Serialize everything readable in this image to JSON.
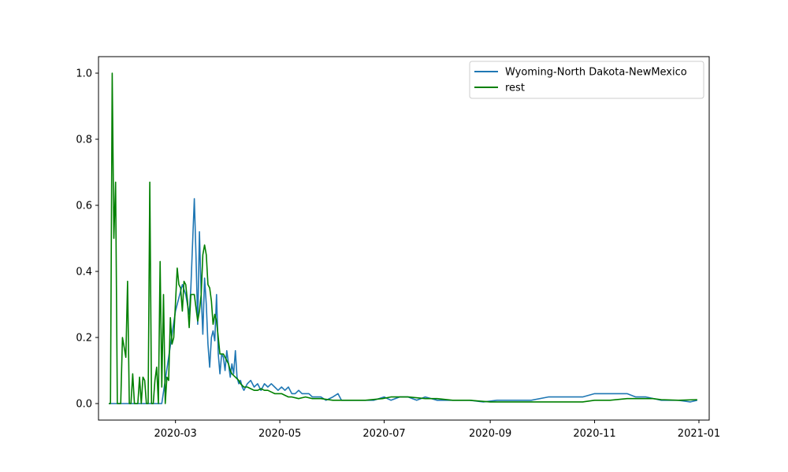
{
  "chart_data": {
    "type": "line",
    "title": "",
    "xlabel": "",
    "ylabel": "",
    "x_range": [
      "2020-01-16",
      "2021-01-07"
    ],
    "ylim": [
      -0.05,
      1.05
    ],
    "x_ticks": [
      {
        "date": "2020-03-01",
        "label": "2020-03"
      },
      {
        "date": "2020-05-01",
        "label": "2020-05"
      },
      {
        "date": "2020-07-01",
        "label": "2020-07"
      },
      {
        "date": "2020-09-01",
        "label": "2020-09"
      },
      {
        "date": "2020-11-01",
        "label": "2020-11"
      },
      {
        "date": "2021-01-01",
        "label": "2021-01"
      }
    ],
    "y_ticks": [
      0.0,
      0.2,
      0.4,
      0.6,
      0.8,
      1.0
    ],
    "y_tick_labels": [
      "0.0",
      "0.2",
      "0.4",
      "0.6",
      "0.8",
      "1.0"
    ],
    "grid": false,
    "legend_position": "top-right",
    "series": [
      {
        "name": "Wyoming-North Dakota-NewMexico",
        "color": "#1f77b4",
        "points": [
          [
            "2020-01-22",
            0.0
          ],
          [
            "2020-02-22",
            0.0
          ],
          [
            "2020-03-01",
            0.28
          ],
          [
            "2020-03-03",
            0.32
          ],
          [
            "2020-03-05",
            0.36
          ],
          [
            "2020-03-07",
            0.33
          ],
          [
            "2020-03-09",
            0.27
          ],
          [
            "2020-03-10",
            0.35
          ],
          [
            "2020-03-12",
            0.62
          ],
          [
            "2020-03-13",
            0.45
          ],
          [
            "2020-03-14",
            0.24
          ],
          [
            "2020-03-15",
            0.52
          ],
          [
            "2020-03-16",
            0.33
          ],
          [
            "2020-03-17",
            0.21
          ],
          [
            "2020-03-18",
            0.38
          ],
          [
            "2020-03-19",
            0.3
          ],
          [
            "2020-03-20",
            0.18
          ],
          [
            "2020-03-21",
            0.11
          ],
          [
            "2020-03-22",
            0.2
          ],
          [
            "2020-03-23",
            0.22
          ],
          [
            "2020-03-24",
            0.19
          ],
          [
            "2020-03-25",
            0.33
          ],
          [
            "2020-03-26",
            0.15
          ],
          [
            "2020-03-27",
            0.09
          ],
          [
            "2020-03-28",
            0.15
          ],
          [
            "2020-03-29",
            0.14
          ],
          [
            "2020-03-30",
            0.1
          ],
          [
            "2020-03-31",
            0.16
          ],
          [
            "2020-04-01",
            0.12
          ],
          [
            "2020-04-02",
            0.08
          ],
          [
            "2020-04-03",
            0.12
          ],
          [
            "2020-04-04",
            0.09
          ],
          [
            "2020-04-05",
            0.16
          ],
          [
            "2020-04-06",
            0.08
          ],
          [
            "2020-04-07",
            0.06
          ],
          [
            "2020-04-08",
            0.07
          ],
          [
            "2020-04-09",
            0.05
          ],
          [
            "2020-04-10",
            0.04
          ],
          [
            "2020-04-12",
            0.06
          ],
          [
            "2020-04-14",
            0.07
          ],
          [
            "2020-04-16",
            0.05
          ],
          [
            "2020-04-18",
            0.06
          ],
          [
            "2020-04-20",
            0.04
          ],
          [
            "2020-04-22",
            0.06
          ],
          [
            "2020-04-24",
            0.05
          ],
          [
            "2020-04-26",
            0.06
          ],
          [
            "2020-04-28",
            0.05
          ],
          [
            "2020-04-30",
            0.04
          ],
          [
            "2020-05-02",
            0.05
          ],
          [
            "2020-05-04",
            0.04
          ],
          [
            "2020-05-06",
            0.05
          ],
          [
            "2020-05-08",
            0.03
          ],
          [
            "2020-05-10",
            0.03
          ],
          [
            "2020-05-12",
            0.04
          ],
          [
            "2020-05-14",
            0.03
          ],
          [
            "2020-05-16",
            0.03
          ],
          [
            "2020-05-18",
            0.03
          ],
          [
            "2020-05-20",
            0.02
          ],
          [
            "2020-05-22",
            0.02
          ],
          [
            "2020-05-25",
            0.02
          ],
          [
            "2020-05-28",
            0.01
          ],
          [
            "2020-06-01",
            0.02
          ],
          [
            "2020-06-04",
            0.03
          ],
          [
            "2020-06-06",
            0.01
          ],
          [
            "2020-06-10",
            0.01
          ],
          [
            "2020-06-15",
            0.01
          ],
          [
            "2020-06-20",
            0.01
          ],
          [
            "2020-06-25",
            0.01
          ],
          [
            "2020-07-01",
            0.02
          ],
          [
            "2020-07-05",
            0.01
          ],
          [
            "2020-07-10",
            0.02
          ],
          [
            "2020-07-15",
            0.02
          ],
          [
            "2020-07-20",
            0.01
          ],
          [
            "2020-07-25",
            0.02
          ],
          [
            "2020-08-01",
            0.01
          ],
          [
            "2020-08-10",
            0.01
          ],
          [
            "2020-08-20",
            0.01
          ],
          [
            "2020-08-28",
            0.005
          ],
          [
            "2020-09-05",
            0.01
          ],
          [
            "2020-09-15",
            0.01
          ],
          [
            "2020-09-25",
            0.01
          ],
          [
            "2020-10-05",
            0.02
          ],
          [
            "2020-10-15",
            0.02
          ],
          [
            "2020-10-25",
            0.02
          ],
          [
            "2020-11-01",
            0.03
          ],
          [
            "2020-11-10",
            0.03
          ],
          [
            "2020-11-15",
            0.03
          ],
          [
            "2020-11-20",
            0.03
          ],
          [
            "2020-11-25",
            0.02
          ],
          [
            "2020-12-01",
            0.02
          ],
          [
            "2020-12-10",
            0.01
          ],
          [
            "2020-12-20",
            0.01
          ],
          [
            "2020-12-27",
            0.005
          ],
          [
            "2020-12-31",
            0.01
          ]
        ]
      },
      {
        "name": "rest",
        "color": "#008000",
        "points": [
          [
            "2020-01-22",
            0.0
          ],
          [
            "2020-01-23",
            0.0
          ],
          [
            "2020-01-24",
            1.0
          ],
          [
            "2020-01-25",
            0.5
          ],
          [
            "2020-01-26",
            0.67
          ],
          [
            "2020-01-27",
            0.0
          ],
          [
            "2020-01-28",
            0.0
          ],
          [
            "2020-01-29",
            0.0
          ],
          [
            "2020-01-30",
            0.2
          ],
          [
            "2020-01-31",
            0.17
          ],
          [
            "2020-02-01",
            0.14
          ],
          [
            "2020-02-02",
            0.37
          ],
          [
            "2020-02-03",
            0.0
          ],
          [
            "2020-02-04",
            0.0
          ],
          [
            "2020-02-05",
            0.09
          ],
          [
            "2020-02-06",
            0.0
          ],
          [
            "2020-02-08",
            0.0
          ],
          [
            "2020-02-09",
            0.08
          ],
          [
            "2020-02-10",
            0.0
          ],
          [
            "2020-02-11",
            0.08
          ],
          [
            "2020-02-12",
            0.07
          ],
          [
            "2020-02-13",
            0.0
          ],
          [
            "2020-02-14",
            0.0
          ],
          [
            "2020-02-15",
            0.67
          ],
          [
            "2020-02-16",
            0.0
          ],
          [
            "2020-02-17",
            0.0
          ],
          [
            "2020-02-18",
            0.07
          ],
          [
            "2020-02-19",
            0.11
          ],
          [
            "2020-02-20",
            0.0
          ],
          [
            "2020-02-21",
            0.43
          ],
          [
            "2020-02-22",
            0.05
          ],
          [
            "2020-02-23",
            0.33
          ],
          [
            "2020-02-24",
            0.0
          ],
          [
            "2020-02-25",
            0.08
          ],
          [
            "2020-02-26",
            0.07
          ],
          [
            "2020-02-27",
            0.26
          ],
          [
            "2020-02-28",
            0.18
          ],
          [
            "2020-02-29",
            0.2
          ],
          [
            "2020-03-02",
            0.41
          ],
          [
            "2020-03-03",
            0.36
          ],
          [
            "2020-03-04",
            0.35
          ],
          [
            "2020-03-05",
            0.28
          ],
          [
            "2020-03-06",
            0.37
          ],
          [
            "2020-03-07",
            0.36
          ],
          [
            "2020-03-08",
            0.31
          ],
          [
            "2020-03-09",
            0.23
          ],
          [
            "2020-03-10",
            0.33
          ],
          [
            "2020-03-12",
            0.33
          ],
          [
            "2020-03-13",
            0.29
          ],
          [
            "2020-03-14",
            0.25
          ],
          [
            "2020-03-15",
            0.28
          ],
          [
            "2020-03-16",
            0.33
          ],
          [
            "2020-03-17",
            0.45
          ],
          [
            "2020-03-18",
            0.48
          ],
          [
            "2020-03-19",
            0.45
          ],
          [
            "2020-03-20",
            0.36
          ],
          [
            "2020-03-21",
            0.35
          ],
          [
            "2020-03-22",
            0.31
          ],
          [
            "2020-03-23",
            0.24
          ],
          [
            "2020-03-24",
            0.27
          ],
          [
            "2020-03-25",
            0.25
          ],
          [
            "2020-03-26",
            0.2
          ],
          [
            "2020-03-27",
            0.15
          ],
          [
            "2020-03-28",
            0.15
          ],
          [
            "2020-03-29",
            0.15
          ],
          [
            "2020-03-31",
            0.13
          ],
          [
            "2020-04-01",
            0.12
          ],
          [
            "2020-04-02",
            0.1
          ],
          [
            "2020-04-03",
            0.09
          ],
          [
            "2020-04-05",
            0.08
          ],
          [
            "2020-04-07",
            0.07
          ],
          [
            "2020-04-08",
            0.06
          ],
          [
            "2020-04-10",
            0.05
          ],
          [
            "2020-04-12",
            0.05
          ],
          [
            "2020-04-14",
            0.045
          ],
          [
            "2020-04-16",
            0.04
          ],
          [
            "2020-04-18",
            0.04
          ],
          [
            "2020-04-20",
            0.045
          ],
          [
            "2020-04-22",
            0.04
          ],
          [
            "2020-04-24",
            0.04
          ],
          [
            "2020-04-26",
            0.035
          ],
          [
            "2020-04-28",
            0.03
          ],
          [
            "2020-04-30",
            0.03
          ],
          [
            "2020-05-02",
            0.03
          ],
          [
            "2020-05-04",
            0.025
          ],
          [
            "2020-05-06",
            0.02
          ],
          [
            "2020-05-08",
            0.02
          ],
          [
            "2020-05-12",
            0.015
          ],
          [
            "2020-05-16",
            0.02
          ],
          [
            "2020-05-20",
            0.015
          ],
          [
            "2020-05-25",
            0.015
          ],
          [
            "2020-06-01",
            0.01
          ],
          [
            "2020-06-10",
            0.01
          ],
          [
            "2020-06-20",
            0.01
          ],
          [
            "2020-06-30",
            0.015
          ],
          [
            "2020-07-05",
            0.02
          ],
          [
            "2020-07-15",
            0.02
          ],
          [
            "2020-07-25",
            0.015
          ],
          [
            "2020-08-01",
            0.015
          ],
          [
            "2020-08-10",
            0.01
          ],
          [
            "2020-08-20",
            0.01
          ],
          [
            "2020-09-01",
            0.005
          ],
          [
            "2020-09-15",
            0.005
          ],
          [
            "2020-09-30",
            0.005
          ],
          [
            "2020-10-15",
            0.005
          ],
          [
            "2020-10-25",
            0.005
          ],
          [
            "2020-11-01",
            0.01
          ],
          [
            "2020-11-10",
            0.01
          ],
          [
            "2020-11-20",
            0.015
          ],
          [
            "2020-11-28",
            0.015
          ],
          [
            "2020-12-05",
            0.015
          ],
          [
            "2020-12-10",
            0.012
          ],
          [
            "2020-12-20",
            0.01
          ],
          [
            "2020-12-31",
            0.012
          ]
        ]
      }
    ]
  }
}
